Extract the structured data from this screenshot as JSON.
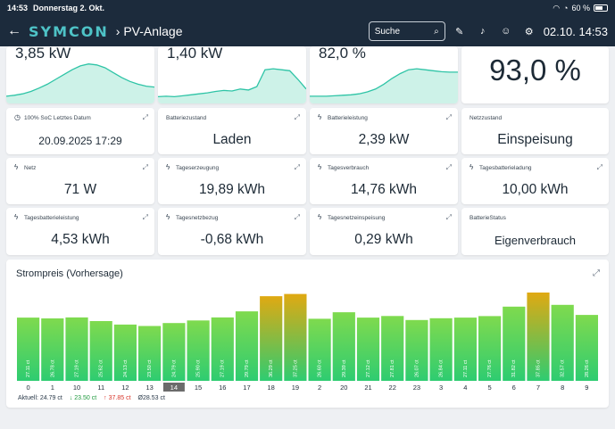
{
  "status_bar": {
    "time": "14:53",
    "date": "Donnerstag 2. Okt.",
    "battery": "60 %"
  },
  "header": {
    "back_icon": "arrow-left-icon",
    "logo": "SYMCON",
    "breadcrumb": "PV-Anlage",
    "search_placeholder": "Suche",
    "clock": "02.10. 14:53"
  },
  "top_cards": [
    {
      "value": "3,85 kW",
      "sparkline": [
        0.15,
        0.17,
        0.2,
        0.25,
        0.32,
        0.4,
        0.5,
        0.6,
        0.7,
        0.78,
        0.82,
        0.8,
        0.74,
        0.64,
        0.54,
        0.46,
        0.4,
        0.36,
        0.34
      ]
    },
    {
      "value": "1,40 kW",
      "sparkline": [
        0.14,
        0.15,
        0.14,
        0.16,
        0.18,
        0.2,
        0.22,
        0.25,
        0.27,
        0.26,
        0.3,
        0.28,
        0.35,
        0.7,
        0.72,
        0.7,
        0.68,
        0.5,
        0.3
      ]
    },
    {
      "value": "82,0 %",
      "sparkline": [
        0.15,
        0.15,
        0.15,
        0.16,
        0.17,
        0.18,
        0.2,
        0.24,
        0.3,
        0.4,
        0.52,
        0.62,
        0.7,
        0.72,
        0.7,
        0.68,
        0.66,
        0.65,
        0.65
      ]
    },
    {
      "value": "93,0 %"
    }
  ],
  "tiles": [
    {
      "label": "100% SoC Letztes Datum",
      "icon": "clock-icon",
      "value": "20.09.2025 17:29"
    },
    {
      "label": "Batteriezustand",
      "icon": "",
      "value": "Laden"
    },
    {
      "label": "Batterieleistung",
      "icon": "bolt-icon",
      "value": "2,39 kW"
    },
    {
      "label": "Netzzustand",
      "icon": "",
      "value": "Einspeisung"
    },
    {
      "label": "Netz",
      "icon": "bolt-icon",
      "value": "71 W"
    },
    {
      "label": "Tageserzeugung",
      "icon": "bolt-icon",
      "value": "19,89 kWh"
    },
    {
      "label": "Tagesverbrauch",
      "icon": "bolt-icon",
      "value": "14,76 kWh"
    },
    {
      "label": "Tagesbatterieladung",
      "icon": "bolt-icon",
      "value": "10,00 kWh"
    },
    {
      "label": "Tagesbatterieleistung",
      "icon": "bolt-icon",
      "value": "4,53 kWh"
    },
    {
      "label": "Tagesnetzbezug",
      "icon": "bolt-icon",
      "value": "-0,68 kWh"
    },
    {
      "label": "Tagesnetzeinspeisung",
      "icon": "bolt-icon",
      "value": "0,29 kWh"
    },
    {
      "label": "BatterieStatus",
      "icon": "",
      "value": "Eigenverbrauch"
    }
  ],
  "chart_data": {
    "type": "bar",
    "title": "Strompreis (Vorhersage)",
    "categories": [
      "0",
      "1",
      "10",
      "11",
      "12",
      "13",
      "14",
      "15",
      "16",
      "17",
      "18",
      "19",
      "2",
      "20",
      "21",
      "22",
      "23",
      "3",
      "4",
      "5",
      "6",
      "7",
      "8",
      "9"
    ],
    "values": [
      27.11,
      26.78,
      27.19,
      25.62,
      24.13,
      23.5,
      24.79,
      25.9,
      27.19,
      29.79,
      36.29,
      37.25,
      26.6,
      29.39,
      27.12,
      27.81,
      26.07,
      26.84,
      27.11,
      27.76,
      31.82,
      37.85,
      32.57,
      28.26
    ],
    "value_labels": [
      "27.11 ct",
      "26.78 ct",
      "27.19 ct",
      "25.62 ct",
      "24.13 ct",
      "23.50 ct",
      "24.79 ct",
      "25.90 ct",
      "27.19 ct",
      "29.79 ct",
      "36.29 ct",
      "37.25 ct",
      "26.60 ct",
      "29.39 ct",
      "27.12 ct",
      "27.81 ct",
      "26.07 ct",
      "26.84 ct",
      "27.11 ct",
      "27.76 ct",
      "31.82 ct",
      "37.85 ct",
      "32.57 ct",
      "28.26 ct"
    ],
    "highlight_index": 6,
    "high_threshold": 33,
    "ylim": [
      0,
      39
    ],
    "colors": {
      "low": "#2ecc71",
      "low_top": "#7fda4e",
      "high_top": "#e0a912",
      "highlight": "#6b6b6b"
    }
  },
  "legend": {
    "current": "Aktuell: 24.79 ct",
    "min": "↓ 23.50 ct",
    "max": "↑ 37.85 ct",
    "avg": "Ø28.53 ct"
  }
}
